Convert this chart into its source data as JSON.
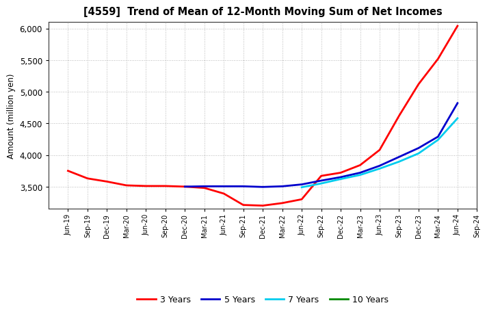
{
  "title": "[4559]  Trend of Mean of 12-Month Moving Sum of Net Incomes",
  "ylabel": "Amount (million yen)",
  "background_color": "#ffffff",
  "plot_bg_color": "#ffffff",
  "grid_color": "#888888",
  "ylim": [
    3150,
    6100
  ],
  "yticks": [
    3500,
    4000,
    4500,
    5000,
    5500,
    6000
  ],
  "x_labels": [
    "Jun-19",
    "Sep-19",
    "Dec-19",
    "Mar-20",
    "Jun-20",
    "Sep-20",
    "Dec-20",
    "Mar-21",
    "Jun-21",
    "Sep-21",
    "Dec-21",
    "Mar-22",
    "Jun-22",
    "Sep-22",
    "Dec-22",
    "Mar-23",
    "Jun-23",
    "Sep-23",
    "Dec-23",
    "Mar-24",
    "Jun-24",
    "Sep-24"
  ],
  "series": {
    "3 Years": {
      "color": "#ff0000",
      "linewidth": 2.0,
      "values": [
        3750,
        3630,
        3580,
        3520,
        3510,
        3510,
        3500,
        3480,
        3390,
        3210,
        3200,
        3240,
        3300,
        3670,
        3720,
        3840,
        4080,
        4620,
        5120,
        5520,
        6040,
        null
      ]
    },
    "5 Years": {
      "color": "#0000cc",
      "linewidth": 2.0,
      "values": [
        null,
        null,
        null,
        null,
        null,
        null,
        3500,
        3505,
        3505,
        3505,
        3495,
        3505,
        3535,
        3595,
        3650,
        3720,
        3830,
        3970,
        4110,
        4290,
        4820,
        null
      ]
    },
    "7 Years": {
      "color": "#00ccee",
      "linewidth": 2.0,
      "values": [
        null,
        null,
        null,
        null,
        null,
        null,
        null,
        null,
        null,
        null,
        null,
        null,
        3490,
        3550,
        3620,
        3685,
        3785,
        3895,
        4025,
        4240,
        4580,
        null
      ]
    },
    "10 Years": {
      "color": "#008800",
      "linewidth": 2.0,
      "values": [
        null,
        null,
        null,
        null,
        null,
        null,
        null,
        null,
        null,
        null,
        null,
        null,
        null,
        null,
        null,
        null,
        null,
        null,
        null,
        null,
        null,
        null
      ]
    }
  },
  "legend_labels": [
    "3 Years",
    "5 Years",
    "7 Years",
    "10 Years"
  ],
  "legend_colors": [
    "#ff0000",
    "#0000cc",
    "#00ccee",
    "#008800"
  ]
}
